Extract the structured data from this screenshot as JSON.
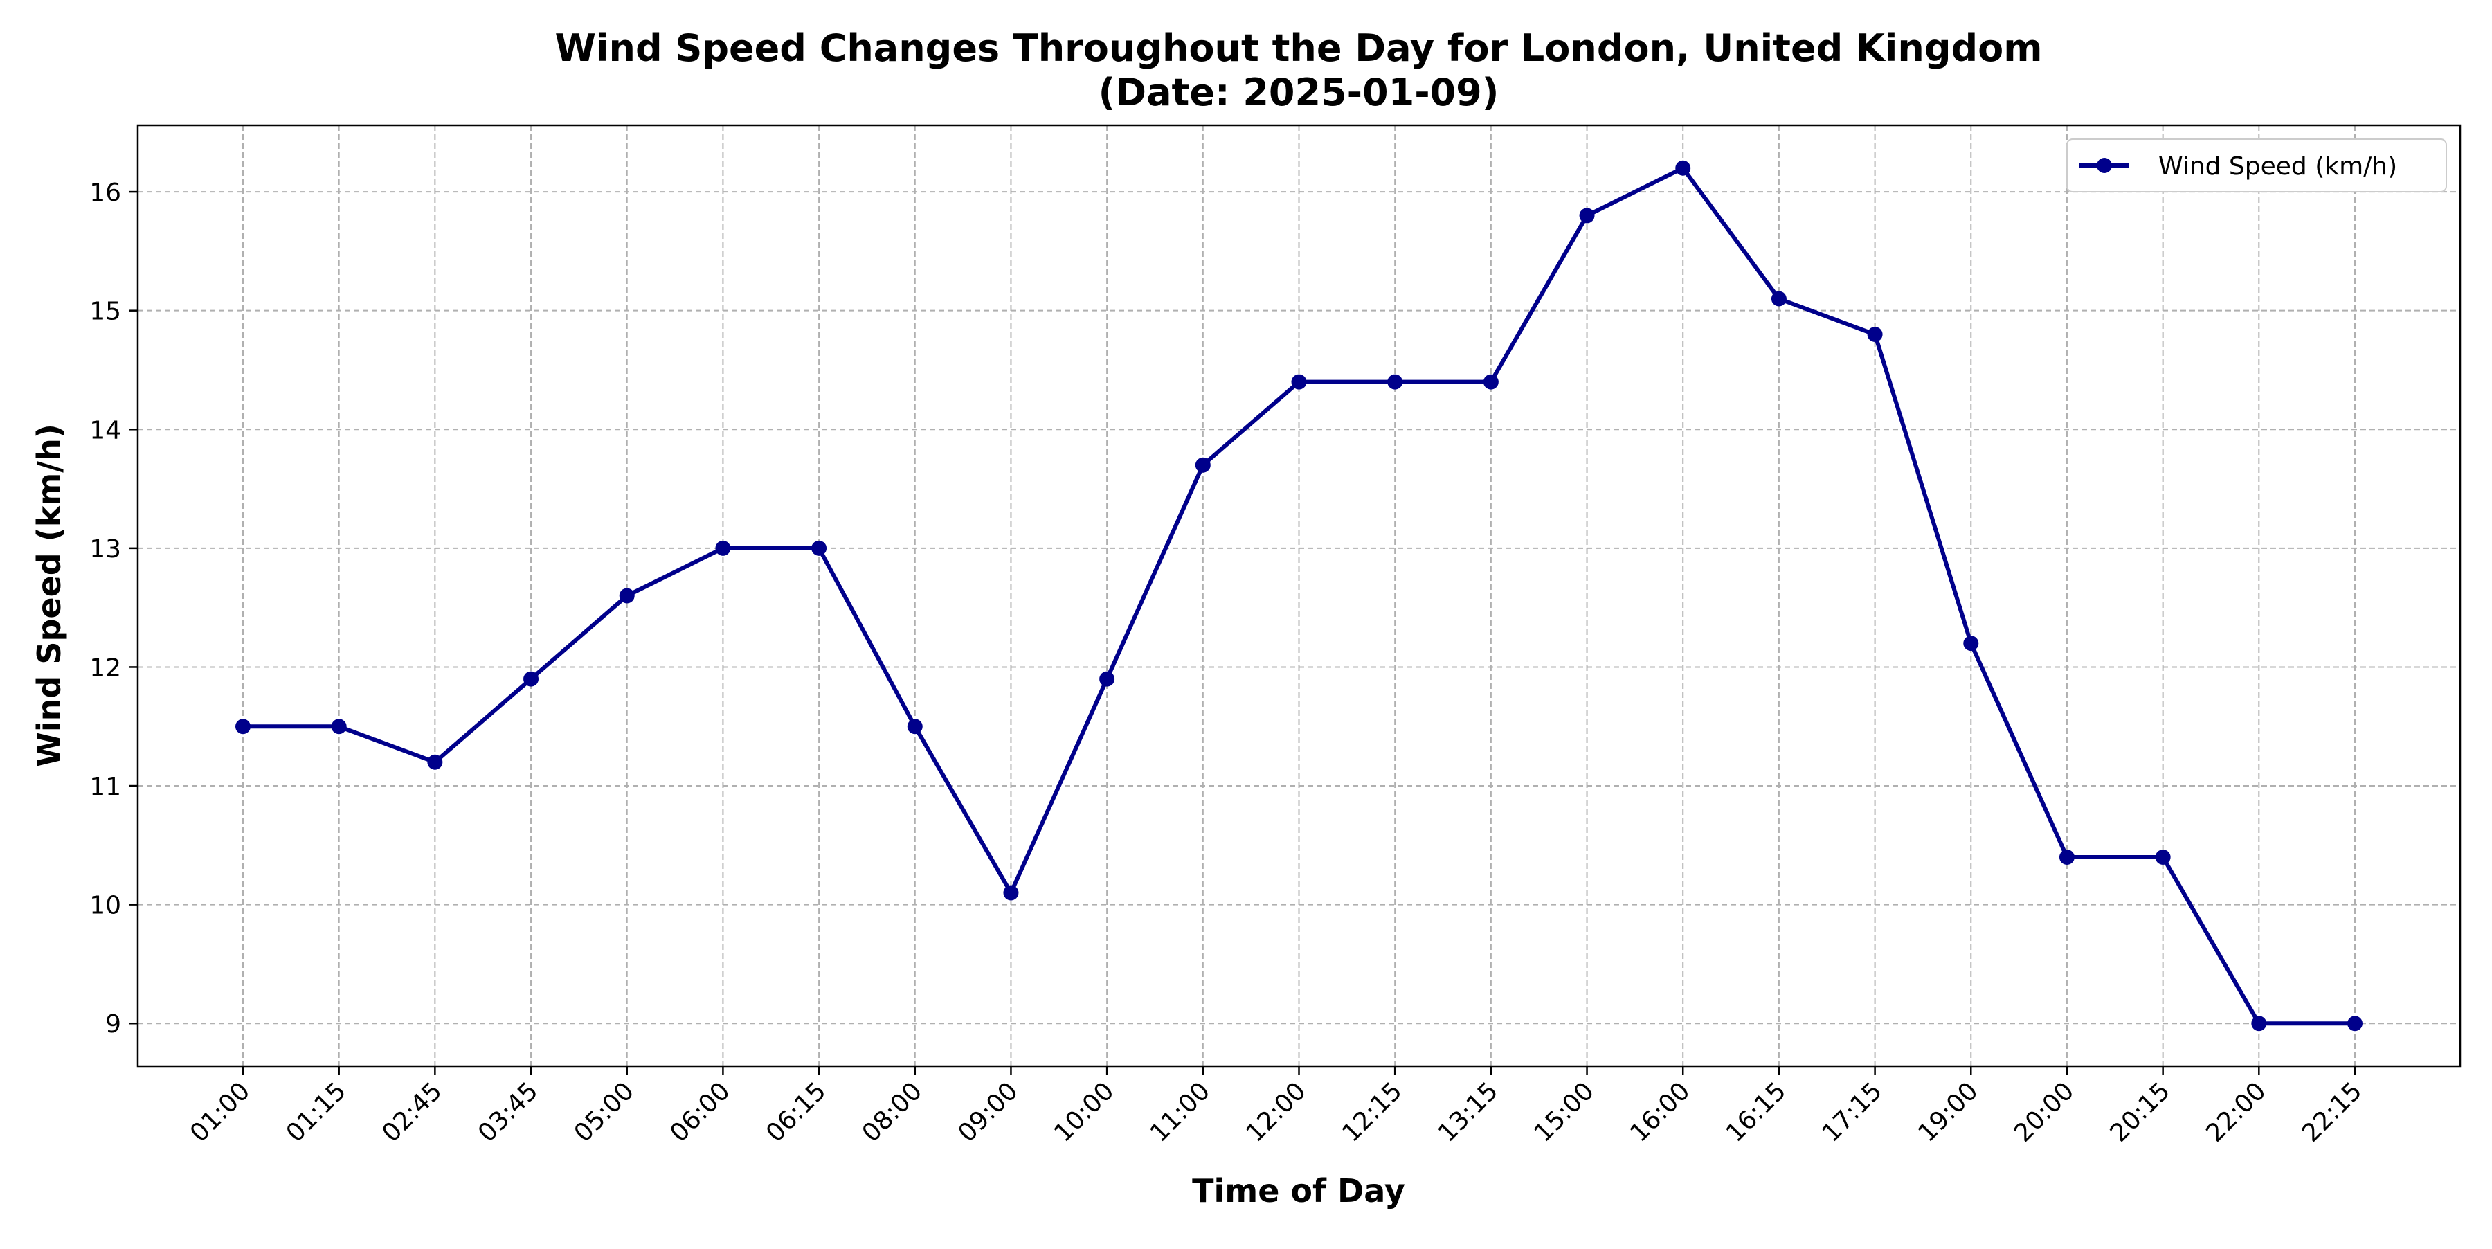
{
  "chart_data": {
    "type": "line",
    "title_line1": "Wind Speed Changes Throughout the Day for London, United Kingdom",
    "title_line2": "(Date: 2025-01-09)",
    "xlabel": "Time of Day",
    "ylabel": "Wind Speed (km/h)",
    "categories": [
      "01:00",
      "01:15",
      "02:45",
      "03:45",
      "05:00",
      "06:00",
      "06:15",
      "08:00",
      "09:00",
      "10:00",
      "11:00",
      "12:00",
      "12:15",
      "13:15",
      "15:00",
      "16:00",
      "16:15",
      "17:15",
      "19:00",
      "20:00",
      "20:15",
      "22:00",
      "22:15"
    ],
    "series": [
      {
        "name": "Wind Speed (km/h)",
        "values": [
          11.5,
          11.5,
          11.2,
          11.9,
          12.6,
          13.0,
          13.0,
          11.5,
          10.1,
          11.9,
          13.7,
          14.4,
          14.4,
          14.4,
          15.8,
          16.2,
          15.1,
          14.8,
          12.2,
          10.4,
          10.4,
          9.0,
          9.0
        ],
        "color": "#00008b"
      }
    ],
    "yticks": [
      9,
      10,
      11,
      12,
      13,
      14,
      15,
      16
    ],
    "ylim": [
      8.64,
      16.56
    ],
    "grid": true,
    "legend_position": "top-right"
  }
}
